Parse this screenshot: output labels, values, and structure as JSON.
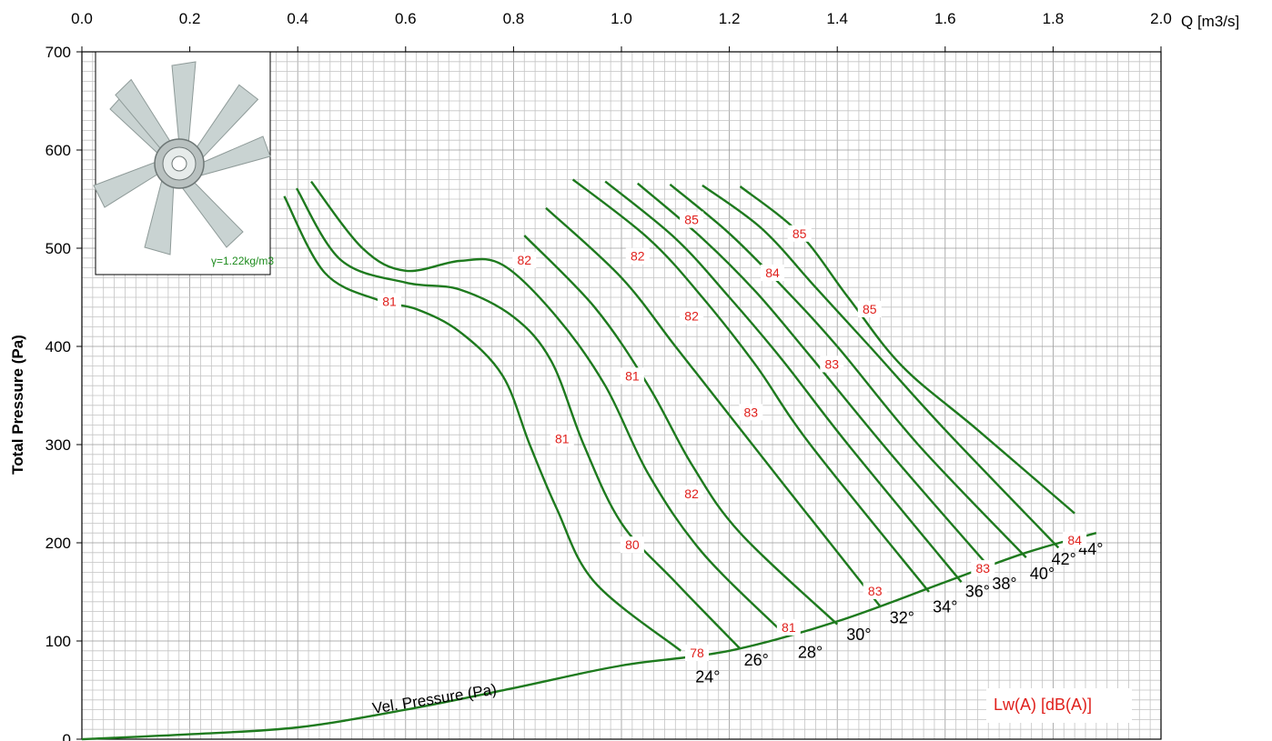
{
  "chart_data": {
    "type": "line",
    "xlabel": "Q [m3/s]",
    "ylabel": "Total Pressure (Pa)",
    "xlim": [
      0,
      2.0
    ],
    "ylim": [
      0,
      700
    ],
    "x_ticks": [
      "0.0",
      "0.2",
      "0.4",
      "0.6",
      "0.8",
      "1.0",
      "1.2",
      "1.4",
      "1.6",
      "1.8",
      "2.0"
    ],
    "y_ticks": [
      "0",
      "100",
      "200",
      "300",
      "400",
      "500",
      "600",
      "700"
    ],
    "x_tick_position": "top",
    "grid": true,
    "line_color": "#1e7a1e",
    "label_color": "#e0201c",
    "series": [
      {
        "name": "24°",
        "points": [
          [
            0.375,
            553
          ],
          [
            0.45,
            475
          ],
          [
            0.55,
            447
          ],
          [
            0.62,
            438
          ],
          [
            0.7,
            415
          ],
          [
            0.78,
            370
          ],
          [
            0.83,
            300
          ],
          [
            0.88,
            235
          ],
          [
            0.95,
            160
          ],
          [
            1.11,
            90
          ]
        ]
      },
      {
        "name": "26°",
        "points": [
          [
            0.398,
            561
          ],
          [
            0.48,
            488
          ],
          [
            0.6,
            465
          ],
          [
            0.7,
            458
          ],
          [
            0.8,
            430
          ],
          [
            0.87,
            385
          ],
          [
            0.93,
            300
          ],
          [
            1.0,
            220
          ],
          [
            1.1,
            160
          ],
          [
            1.22,
            92
          ]
        ]
      },
      {
        "name": "28°",
        "points": [
          [
            0.425,
            568
          ],
          [
            0.52,
            500
          ],
          [
            0.6,
            477
          ],
          [
            0.7,
            487
          ],
          [
            0.78,
            483
          ],
          [
            0.88,
            430
          ],
          [
            0.97,
            360
          ],
          [
            1.05,
            270
          ],
          [
            1.15,
            190
          ],
          [
            1.3,
            108
          ]
        ]
      },
      {
        "name": "30°",
        "points": [
          [
            0.82,
            513
          ],
          [
            0.95,
            440
          ],
          [
            1.05,
            360
          ],
          [
            1.13,
            280
          ],
          [
            1.22,
            210
          ],
          [
            1.4,
            117
          ]
        ]
      },
      {
        "name": "32°",
        "points": [
          [
            0.86,
            541
          ],
          [
            1.0,
            470
          ],
          [
            1.1,
            400
          ],
          [
            1.2,
            330
          ],
          [
            1.3,
            260
          ],
          [
            1.48,
            135
          ]
        ]
      },
      {
        "name": "34°",
        "points": [
          [
            0.91,
            570
          ],
          [
            1.05,
            510
          ],
          [
            1.15,
            450
          ],
          [
            1.25,
            380
          ],
          [
            1.35,
            300
          ],
          [
            1.57,
            150
          ]
        ]
      },
      {
        "name": "36°",
        "points": [
          [
            0.97,
            568
          ],
          [
            1.1,
            510
          ],
          [
            1.2,
            450
          ],
          [
            1.3,
            385
          ],
          [
            1.42,
            300
          ],
          [
            1.63,
            160
          ]
        ]
      },
      {
        "name": "38°",
        "points": [
          [
            1.03,
            566
          ],
          [
            1.15,
            510
          ],
          [
            1.25,
            455
          ],
          [
            1.35,
            390
          ],
          [
            1.5,
            290
          ],
          [
            1.69,
            170
          ]
        ]
      },
      {
        "name": "40°",
        "points": [
          [
            1.09,
            565
          ],
          [
            1.2,
            515
          ],
          [
            1.3,
            460
          ],
          [
            1.4,
            400
          ],
          [
            1.55,
            300
          ],
          [
            1.75,
            185
          ]
        ]
      },
      {
        "name": "42°",
        "points": [
          [
            1.15,
            564
          ],
          [
            1.26,
            520
          ],
          [
            1.36,
            460
          ],
          [
            1.46,
            400
          ],
          [
            1.6,
            315
          ],
          [
            1.81,
            195
          ]
        ]
      },
      {
        "name": "44°",
        "points": [
          [
            1.22,
            563
          ],
          [
            1.33,
            515
          ],
          [
            1.42,
            450
          ],
          [
            1.52,
            380
          ],
          [
            1.66,
            315
          ],
          [
            1.84,
            230
          ]
        ]
      }
    ],
    "vel_pressure": {
      "name": "Vel. Pressure (Pa)",
      "points": [
        [
          0,
          0
        ],
        [
          0.2,
          5
        ],
        [
          0.4,
          12
        ],
        [
          0.6,
          30
        ],
        [
          0.8,
          52
        ],
        [
          1.0,
          75
        ],
        [
          1.2,
          90
        ],
        [
          1.4,
          120
        ],
        [
          1.6,
          160
        ],
        [
          1.75,
          190
        ],
        [
          1.88,
          210
        ]
      ]
    },
    "angle_labels": [
      {
        "text": "24°",
        "x": 1.16,
        "y": 58
      },
      {
        "text": "26°",
        "x": 1.25,
        "y": 75
      },
      {
        "text": "28°",
        "x": 1.35,
        "y": 83
      },
      {
        "text": "30°",
        "x": 1.44,
        "y": 101
      },
      {
        "text": "32°",
        "x": 1.52,
        "y": 118
      },
      {
        "text": "34°",
        "x": 1.6,
        "y": 129
      },
      {
        "text": "36°",
        "x": 1.66,
        "y": 145
      },
      {
        "text": "38°",
        "x": 1.71,
        "y": 153
      },
      {
        "text": "40°",
        "x": 1.78,
        "y": 163
      },
      {
        "text": "42°",
        "x": 1.82,
        "y": 178
      },
      {
        "text": "44°",
        "x": 1.87,
        "y": 188
      }
    ],
    "sound_labels": [
      {
        "text": "81",
        "x": 0.57,
        "y": 446
      },
      {
        "text": "82",
        "x": 0.82,
        "y": 488
      },
      {
        "text": "81",
        "x": 0.89,
        "y": 306
      },
      {
        "text": "80",
        "x": 1.02,
        "y": 198
      },
      {
        "text": "78",
        "x": 1.14,
        "y": 88
      },
      {
        "text": "82",
        "x": 1.03,
        "y": 492
      },
      {
        "text": "81",
        "x": 1.02,
        "y": 370
      },
      {
        "text": "82",
        "x": 1.13,
        "y": 250
      },
      {
        "text": "81",
        "x": 1.31,
        "y": 114
      },
      {
        "text": "85",
        "x": 1.13,
        "y": 529
      },
      {
        "text": "82",
        "x": 1.13,
        "y": 431
      },
      {
        "text": "83",
        "x": 1.24,
        "y": 333
      },
      {
        "text": "83",
        "x": 1.47,
        "y": 151
      },
      {
        "text": "84",
        "x": 1.28,
        "y": 475
      },
      {
        "text": "83",
        "x": 1.39,
        "y": 382
      },
      {
        "text": "85",
        "x": 1.33,
        "y": 515
      },
      {
        "text": "85",
        "x": 1.46,
        "y": 438
      },
      {
        "text": "83",
        "x": 1.67,
        "y": 174
      },
      {
        "text": "84",
        "x": 1.84,
        "y": 203
      }
    ],
    "vel_label": "Vel. Pressure (Pa)",
    "legend": "Lw(A) [dB(A)]",
    "density": "γ=1.22kg/m3"
  }
}
